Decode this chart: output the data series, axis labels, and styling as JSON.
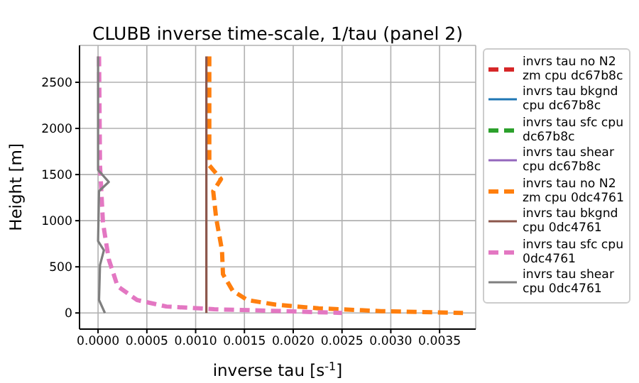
{
  "chart_data": {
    "type": "line",
    "title": "CLUBB inverse time-scale, 1/tau (panel 2)",
    "xlabel": "inverse tau [s$^{-1}$]",
    "ylabel": "Height [m]",
    "xlim": [
      -0.00019,
      0.00387
    ],
    "xticks": [
      {
        "value": 0,
        "label": "0.0000"
      },
      {
        "value": 0.0005,
        "label": "0.0005"
      },
      {
        "value": 0.001,
        "label": "0.0010"
      },
      {
        "value": 0.0015,
        "label": "0.0015"
      },
      {
        "value": 0.002,
        "label": "0.0020"
      },
      {
        "value": 0.0025,
        "label": "0.0025"
      },
      {
        "value": 0.003,
        "label": "0.0030"
      },
      {
        "value": 0.0035,
        "label": "0.0035"
      }
    ],
    "ylim": [
      -175,
      2900
    ],
    "yticks": [
      0,
      500,
      1000,
      1500,
      2000,
      2500
    ],
    "grid": true,
    "legend": "right",
    "marker": "none",
    "series": [
      {
        "name": "invrs tau no N2 zm cpu dc67b8c",
        "color": "#d62728",
        "line_style": "dashed",
        "values": [
          null
        ]
      },
      {
        "name": "invrs tau bkgnd cpu dc67b8c",
        "color": "#1f77b4",
        "line_style": "solid",
        "values": [
          null
        ]
      },
      {
        "name": "invrs tau sfc cpu dc67b8c",
        "color": "#2ca02c",
        "line_style": "dashed",
        "values": [
          null
        ]
      },
      {
        "name": "invrs tau shear cpu dc67b8c",
        "color": "#9467bd",
        "line_style": "solid",
        "values": [
          null
        ]
      },
      {
        "name": "invrs tau no N2 zm cpu 0dc4761",
        "color": "#ff7f0e",
        "line_style": "dashed",
        "x": [
          0.00114,
          0.00114,
          0.00118,
          0.00126,
          0.00118,
          0.00121,
          0.00127,
          0.00128,
          0.00138,
          0.00153,
          0.00182,
          0.00226,
          0.0029,
          0.00374
        ],
        "values": [
          2780,
          1600,
          1550,
          1450,
          1320,
          1030,
          680,
          420,
          240,
          140,
          90,
          50,
          20,
          0
        ]
      },
      {
        "name": "invrs tau bkgnd cpu 0dc4761",
        "color": "#8c564b",
        "line_style": "solid",
        "x": [
          0.00111,
          0.00111
        ],
        "values": [
          2780,
          0
        ]
      },
      {
        "name": "invrs tau sfc cpu 0dc4761",
        "color": "#e377c2",
        "line_style": "dashed",
        "x": [
          1e-05,
          2e-05,
          5e-05,
          0.00011,
          0.0002,
          0.0004,
          0.0007,
          0.00119,
          0.0019,
          0.0025
        ],
        "values": [
          2780,
          1600,
          980,
          580,
          290,
          140,
          70,
          40,
          20,
          0
        ]
      },
      {
        "name": "invrs tau shear cpu 0dc4761",
        "color": "#7f7f7f",
        "line_style": "solid",
        "x": [
          0,
          0,
          0.00011,
          1e-05,
          0,
          6e-05,
          2e-05,
          1e-05,
          7e-05
        ],
        "values": [
          2780,
          1550,
          1420,
          1320,
          780,
          680,
          520,
          140,
          0
        ]
      }
    ]
  }
}
